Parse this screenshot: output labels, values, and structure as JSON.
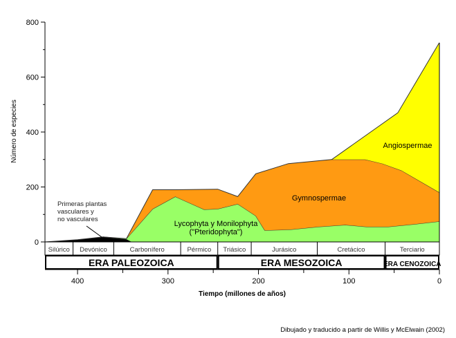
{
  "chart_data": {
    "type": "area",
    "ylabel": "Número de especies",
    "xlabel": "Tiempo (millones de años)",
    "xlim": [
      436,
      0
    ],
    "ylim": [
      0,
      800
    ],
    "x_ticks": [
      400,
      300,
      200,
      100,
      0
    ],
    "x_minor_ticks": [
      350,
      250,
      150,
      50
    ],
    "y_ticks": [
      0,
      200,
      400,
      600,
      800
    ],
    "y_minor_ticks": [
      100,
      300,
      500,
      700
    ],
    "grid": false,
    "series": [
      {
        "name": "Primeras plantas vasculares y no vasculares",
        "color": "#000000",
        "upper": [
          [
            436,
            0
          ],
          [
            400,
            8
          ],
          [
            372,
            18
          ],
          [
            346,
            10
          ],
          [
            340,
            0
          ]
        ],
        "lower": [
          [
            436,
            0
          ],
          [
            340,
            0
          ]
        ]
      },
      {
        "name": "Lycophyta y Monilophyta (\"Pteridophyta\")",
        "color": "#99ff66",
        "upper": [
          [
            372,
            18
          ],
          [
            346,
            12
          ],
          [
            317,
            120
          ],
          [
            292,
            165
          ],
          [
            260,
            118
          ],
          [
            245,
            120
          ],
          [
            223,
            138
          ],
          [
            203,
            95
          ],
          [
            193,
            42
          ],
          [
            165,
            45
          ],
          [
            134,
            55
          ],
          [
            104,
            62
          ],
          [
            80,
            55
          ],
          [
            57,
            55
          ],
          [
            27,
            65
          ],
          [
            0,
            75
          ]
        ],
        "lower": [
          [
            372,
            18
          ],
          [
            346,
            10
          ],
          [
            340,
            0
          ],
          [
            0,
            0
          ]
        ]
      },
      {
        "name": "Gymnospermae",
        "color": "#ff9a12",
        "upper": [
          [
            346,
            12
          ],
          [
            317,
            190
          ],
          [
            292,
            190
          ],
          [
            245,
            192
          ],
          [
            223,
            165
          ],
          [
            203,
            248
          ],
          [
            167,
            285
          ],
          [
            119,
            300
          ],
          [
            82,
            300
          ],
          [
            63,
            285
          ],
          [
            42,
            260
          ],
          [
            0,
            180
          ]
        ],
        "lower": [
          [
            346,
            12
          ],
          [
            317,
            120
          ],
          [
            292,
            165
          ],
          [
            260,
            118
          ],
          [
            245,
            120
          ],
          [
            223,
            138
          ],
          [
            203,
            95
          ],
          [
            193,
            42
          ],
          [
            165,
            45
          ],
          [
            134,
            55
          ],
          [
            104,
            62
          ],
          [
            80,
            55
          ],
          [
            57,
            55
          ],
          [
            27,
            65
          ],
          [
            0,
            75
          ]
        ]
      },
      {
        "name": "Angiospermae",
        "color": "#ffff00",
        "upper": [
          [
            119,
            300
          ],
          [
            46,
            470
          ],
          [
            1,
            720
          ],
          [
            0,
            725
          ]
        ],
        "lower": [
          [
            119,
            300
          ],
          [
            82,
            300
          ],
          [
            63,
            285
          ],
          [
            42,
            260
          ],
          [
            0,
            180
          ]
        ]
      }
    ],
    "labels": {
      "early": [
        "Primeras plantas",
        "vasculares y",
        "no vasculares"
      ],
      "ferns": [
        "Lycophyta y Monilophyta",
        "(\"Pteridophyta\")"
      ],
      "gymno": "Gymnospermae",
      "angio": "Angiospermae"
    },
    "periods": [
      {
        "name": "Silúrico",
        "start": 436,
        "end": 405
      },
      {
        "name": "Devónico",
        "start": 405,
        "end": 360
      },
      {
        "name": "Carbonífero",
        "start": 360,
        "end": 286
      },
      {
        "name": "Pérmico",
        "start": 286,
        "end": 245
      },
      {
        "name": "Triásico",
        "start": 245,
        "end": 208
      },
      {
        "name": "Jurásico",
        "start": 208,
        "end": 135
      },
      {
        "name": "Cretácico",
        "start": 135,
        "end": 60
      },
      {
        "name": "Terciario",
        "start": 60,
        "end": 0
      }
    ],
    "eras": [
      {
        "name": "ERA PALEOZOICA",
        "start": 436,
        "end": 245
      },
      {
        "name": "ERA MESOZOICA",
        "start": 245,
        "end": 60
      },
      {
        "name": "ERA CENOZOICA",
        "start": 60,
        "end": 0
      }
    ],
    "source": "Dibujado y traducido a partir de Willis y McElwain (2002)"
  }
}
